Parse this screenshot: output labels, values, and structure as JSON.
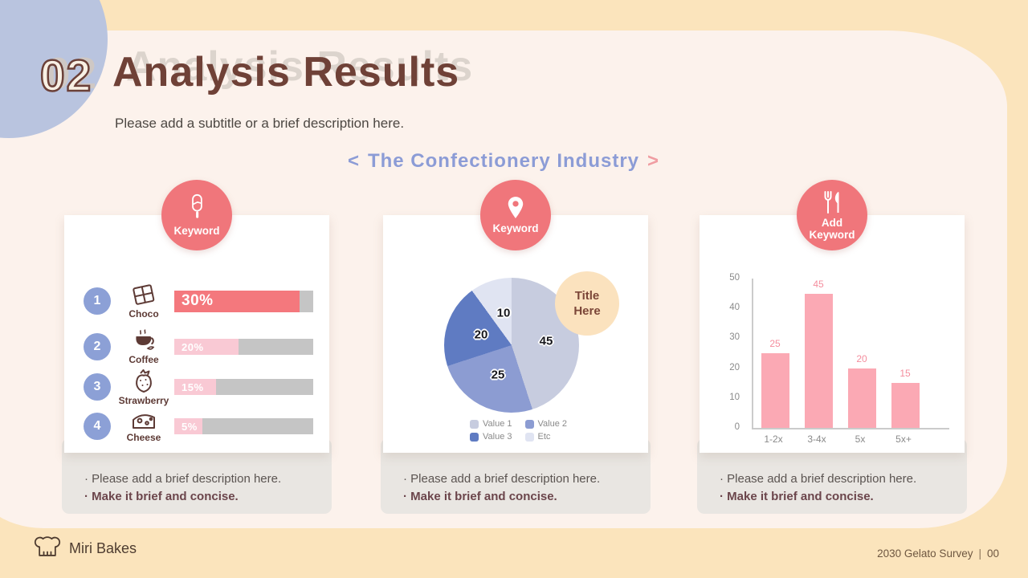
{
  "header": {
    "number": "02",
    "title": "Analysis Results",
    "subtitle": "Please add a subtitle or a brief description here.",
    "section_heading": {
      "open": "<",
      "text": "The Confectionery Industry",
      "close": ">"
    }
  },
  "footer": {
    "brand": "Miri Bakes",
    "survey": "2030 Gelato Survey",
    "divider": "|",
    "page": "00"
  },
  "cards": [
    {
      "badge": {
        "icon": "popsicle-icon",
        "label": "Keyword"
      },
      "rows": [
        {
          "num": "1",
          "label": "Choco",
          "value": "30%",
          "fill": 90
        },
        {
          "num": "2",
          "label": "Coffee",
          "value": "20%",
          "fill": 46
        },
        {
          "num": "3",
          "label": "Strawberry",
          "value": "15%",
          "fill": 30
        },
        {
          "num": "4",
          "label": "Cheese",
          "value": "5%",
          "fill": 20
        }
      ],
      "desc1": "· Please add a brief description here.",
      "desc2": "· Make it brief and concise."
    },
    {
      "badge": {
        "icon": "location-pin-icon",
        "label": "Keyword"
      },
      "bubble": "Title Here",
      "legend": [
        {
          "label": "Value 1",
          "color": "#C7CCDF"
        },
        {
          "label": "Value 2",
          "color": "#8C9CD2"
        },
        {
          "label": "Value 3",
          "color": "#5F7BC2"
        },
        {
          "label": "Etc",
          "color": "#E0E4F2"
        }
      ],
      "desc1": "· Please add a brief description here.",
      "desc2": "· Make it brief and concise."
    },
    {
      "badge": {
        "icon": "fork-knife-icon",
        "label": "Add Keyword"
      },
      "desc1": "· Please add a brief description here.",
      "desc2": "· Make it brief and concise."
    }
  ],
  "chart_data": [
    {
      "type": "bar",
      "orientation": "horizontal",
      "title": "Keyword",
      "categories": [
        "Choco",
        "Coffee",
        "Strawberry",
        "Cheese"
      ],
      "values": [
        30,
        20,
        15,
        5
      ],
      "value_labels": [
        "30%",
        "20%",
        "15%",
        "5%"
      ],
      "bar_colors": [
        "#F4787D",
        "#F9C9D4",
        "#F9C9D4",
        "#F9C9D4"
      ],
      "track_color": "#C5C5C5"
    },
    {
      "type": "pie",
      "title": "Keyword",
      "labels": [
        "Value 1",
        "Value 2",
        "Value 3",
        "Etc"
      ],
      "values": [
        45,
        25,
        20,
        10
      ],
      "colors": [
        "#C7CCDF",
        "#8C9CD2",
        "#5F7BC2",
        "#E0E4F2"
      ],
      "legend_position": "bottom",
      "start_angle": "top",
      "direction": "clockwise"
    },
    {
      "type": "bar",
      "title": "Add Keyword",
      "categories": [
        "1-2x",
        "3-4x",
        "5x",
        "5x+"
      ],
      "values": [
        25,
        45,
        20,
        15
      ],
      "ylim": [
        0,
        50
      ],
      "yticks": [
        0,
        10,
        20,
        30,
        40,
        50
      ],
      "bar_color": "#FBA9B4",
      "grid": false
    }
  ]
}
